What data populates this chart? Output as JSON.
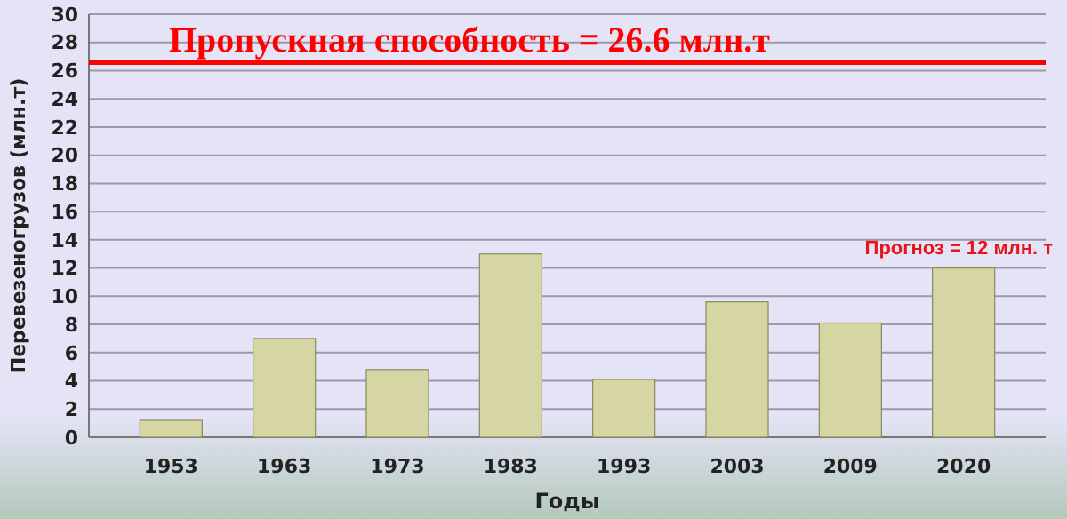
{
  "chart_data": {
    "type": "bar",
    "xlabel": "Годы",
    "ylabel": "Перевезеногрузов (млн.т)",
    "categories": [
      "1953",
      "1963",
      "1973",
      "1983",
      "1993",
      "2003",
      "2009",
      "2020"
    ],
    "values": [
      1.2,
      7,
      4.8,
      13,
      4.1,
      9.6,
      8.1,
      12
    ],
    "color": "#d6d6a4",
    "ylim": [
      0,
      30
    ],
    "yticks": [
      0,
      2,
      4,
      6,
      8,
      10,
      12,
      14,
      16,
      18,
      20,
      22,
      24,
      26,
      28,
      30
    ],
    "grid": "y",
    "ref_lines": [
      {
        "axis": "y",
        "value": 26.6,
        "label": "Пропускная способность = 26.6 млн.т",
        "color": "#ff0000"
      }
    ],
    "annotations": [
      {
        "text": "Прогноз = 12 млн. т",
        "x": "2020",
        "y": 12
      }
    ]
  }
}
